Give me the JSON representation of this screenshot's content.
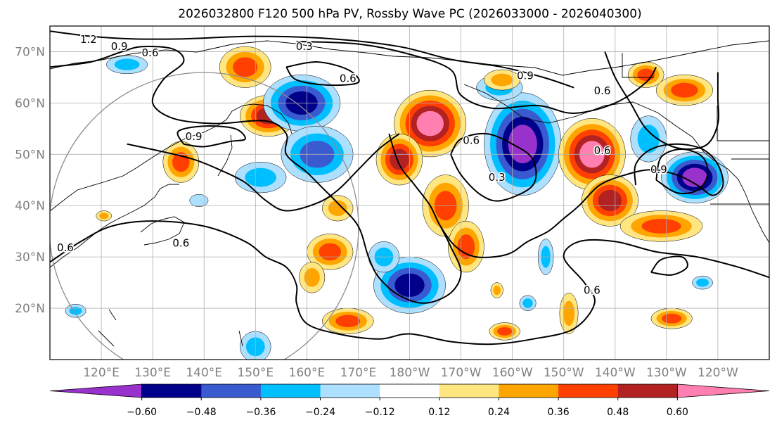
{
  "chart_data": {
    "type": "heatmap",
    "title": "2026032800 F120 500 hPa PV, Rossby Wave PC (2026033000 - 2026040300)",
    "xlabel": "",
    "ylabel": "",
    "lon_range": [
      110,
      250
    ],
    "lat_range": [
      10,
      75
    ],
    "lat_ticks": [
      {
        "value": 20,
        "label": "20°N"
      },
      {
        "value": 30,
        "label": "30°N"
      },
      {
        "value": 40,
        "label": "40°N"
      },
      {
        "value": 50,
        "label": "50°N"
      },
      {
        "value": 60,
        "label": "60°N"
      },
      {
        "value": 70,
        "label": "70°N"
      }
    ],
    "lon_ticks": [
      {
        "value": 120,
        "label": "120°E"
      },
      {
        "value": 130,
        "label": "130°E"
      },
      {
        "value": 140,
        "label": "140°E"
      },
      {
        "value": 150,
        "label": "150°E"
      },
      {
        "value": 160,
        "label": "160°E"
      },
      {
        "value": 170,
        "label": "170°E"
      },
      {
        "value": 180,
        "label": "180°W"
      },
      {
        "value": 190,
        "label": "170°W"
      },
      {
        "value": 200,
        "label": "160°W"
      },
      {
        "value": 210,
        "label": "150°W"
      },
      {
        "value": 220,
        "label": "140°W"
      },
      {
        "value": 230,
        "label": "130°W"
      },
      {
        "value": 240,
        "label": "120°W"
      }
    ],
    "grid": true,
    "colorbar": {
      "levels": [
        -0.6,
        -0.48,
        -0.36,
        -0.24,
        -0.12,
        0.12,
        0.24,
        0.36,
        0.48,
        0.6
      ],
      "tick_labels": [
        "−0.60",
        "−0.48",
        "−0.36",
        "−0.24",
        "−0.12",
        "0.12",
        "0.24",
        "0.36",
        "0.48",
        "0.60"
      ],
      "colors": [
        "#9932CC",
        "#00008B",
        "#3A5BCF",
        "#00BFFF",
        "#ADDFFF",
        "#FFFFFF",
        "#FFE680",
        "#FFA500",
        "#FF4000",
        "#B22222",
        "#FF80B0"
      ],
      "extend": "both"
    },
    "contour_levels": [
      0.3,
      0.6,
      0.9,
      1.2
    ],
    "contour_labels": [
      {
        "text": "1.2",
        "lon": 117.5,
        "lat": 72.4
      },
      {
        "text": "0.9",
        "lon": 123.5,
        "lat": 71.0
      },
      {
        "text": "0.6",
        "lon": 129.5,
        "lat": 69.8
      },
      {
        "text": "0.3",
        "lon": 159.5,
        "lat": 71.0
      },
      {
        "text": "0.6",
        "lon": 168.0,
        "lat": 64.8
      },
      {
        "text": "0.9",
        "lon": 202.5,
        "lat": 65.3
      },
      {
        "text": "0.6",
        "lon": 217.5,
        "lat": 62.4
      },
      {
        "text": "0.9",
        "lon": 138.0,
        "lat": 53.5
      },
      {
        "text": "0.6",
        "lon": 192.0,
        "lat": 52.7
      },
      {
        "text": "0.6",
        "lon": 217.5,
        "lat": 50.7
      },
      {
        "text": "0.9",
        "lon": 228.5,
        "lat": 47.0
      },
      {
        "text": "0.3",
        "lon": 197.0,
        "lat": 45.5
      },
      {
        "text": "0.6",
        "lon": 135.5,
        "lat": 32.7
      },
      {
        "text": "0.6",
        "lon": 113.0,
        "lat": 31.8
      },
      {
        "text": "0.6",
        "lon": 215.5,
        "lat": 23.5
      }
    ],
    "blobs": [
      {
        "lon": 148,
        "lat": 67,
        "rlon": 5,
        "rlat": 4,
        "v": 0.42
      },
      {
        "lon": 152.5,
        "lat": 57.5,
        "rlon": 5.5,
        "rlat": 4,
        "v": 0.52
      },
      {
        "lon": 135.5,
        "lat": 48.5,
        "rlon": 3.5,
        "rlat": 4,
        "v": 0.46
      },
      {
        "lon": 159,
        "lat": 60,
        "rlon": 7.5,
        "rlat": 5.5,
        "v": -0.48
      },
      {
        "lon": 162,
        "lat": 50,
        "rlon": 7,
        "rlat": 5.5,
        "v": -0.38
      },
      {
        "lon": 151,
        "lat": 45.5,
        "rlon": 5,
        "rlat": 3,
        "v": -0.28
      },
      {
        "lon": 184,
        "lat": 56,
        "rlon": 7,
        "rlat": 6.5,
        "v": 0.68
      },
      {
        "lon": 178,
        "lat": 49,
        "rlon": 4.5,
        "rlat": 5,
        "v": 0.58
      },
      {
        "lon": 187,
        "lat": 40,
        "rlon": 4.5,
        "rlat": 6,
        "v": 0.46
      },
      {
        "lon": 191,
        "lat": 32,
        "rlon": 3.5,
        "rlat": 5,
        "v": 0.38
      },
      {
        "lon": 202,
        "lat": 52,
        "rlon": 7.5,
        "rlat": 10,
        "v": -0.68
      },
      {
        "lon": 197.5,
        "lat": 63,
        "rlon": 4.5,
        "rlat": 2.5,
        "v": -0.28
      },
      {
        "lon": 215.5,
        "lat": 50,
        "rlon": 6.5,
        "rlat": 7,
        "v": 0.66
      },
      {
        "lon": 219,
        "lat": 41,
        "rlon": 5.5,
        "rlat": 5,
        "v": 0.56
      },
      {
        "lon": 229,
        "lat": 36,
        "rlon": 8,
        "rlat": 3,
        "v": 0.4
      },
      {
        "lon": 235.5,
        "lat": 45.5,
        "rlon": 6.5,
        "rlat": 5,
        "v": -0.66
      },
      {
        "lon": 226.5,
        "lat": 53,
        "rlon": 3.5,
        "rlat": 4.5,
        "v": -0.32
      },
      {
        "lon": 180,
        "lat": 24.5,
        "rlon": 7,
        "rlat": 5.5,
        "v": -0.54
      },
      {
        "lon": 175,
        "lat": 30,
        "rlon": 3,
        "rlat": 3,
        "v": -0.3
      },
      {
        "lon": 233.5,
        "lat": 62.5,
        "rlon": 5.5,
        "rlat": 3,
        "v": 0.46
      },
      {
        "lon": 226,
        "lat": 65.5,
        "rlon": 3.5,
        "rlat": 2.5,
        "v": 0.38
      },
      {
        "lon": 198,
        "lat": 64.5,
        "rlon": 3.5,
        "rlat": 2,
        "v": 0.26
      },
      {
        "lon": 125,
        "lat": 67.5,
        "rlon": 4,
        "rlat": 1.8,
        "v": -0.26
      },
      {
        "lon": 164.5,
        "lat": 31,
        "rlon": 4.5,
        "rlat": 3.5,
        "v": 0.36
      },
      {
        "lon": 161,
        "lat": 26,
        "rlon": 2.5,
        "rlat": 3,
        "v": 0.3
      },
      {
        "lon": 166,
        "lat": 39.5,
        "rlon": 3,
        "rlat": 2.5,
        "v": 0.3
      },
      {
        "lon": 168,
        "lat": 17.5,
        "rlon": 5,
        "rlat": 2.5,
        "v": 0.4
      },
      {
        "lon": 198.5,
        "lat": 15.5,
        "rlon": 3,
        "rlat": 1.7,
        "v": 0.38
      },
      {
        "lon": 211,
        "lat": 19,
        "rlon": 1.8,
        "rlat": 4,
        "v": 0.34
      },
      {
        "lon": 231,
        "lat": 18,
        "rlon": 4,
        "rlat": 2,
        "v": 0.38
      },
      {
        "lon": 150,
        "lat": 12.5,
        "rlon": 3,
        "rlat": 3,
        "v": -0.26
      },
      {
        "lon": 206.5,
        "lat": 30,
        "rlon": 1.5,
        "rlat": 3.5,
        "v": -0.26
      },
      {
        "lon": 139,
        "lat": 41,
        "rlon": 1.8,
        "rlat": 1.2,
        "v": -0.22
      },
      {
        "lon": 115,
        "lat": 19.5,
        "rlon": 2,
        "rlat": 1.3,
        "v": -0.26
      },
      {
        "lon": 237,
        "lat": 25,
        "rlon": 2,
        "rlat": 1.3,
        "v": -0.26
      },
      {
        "lon": 203,
        "lat": 21,
        "rlon": 1.6,
        "rlat": 1.5,
        "v": -0.26
      },
      {
        "lon": 197,
        "lat": 23.5,
        "rlon": 1.2,
        "rlat": 1.5,
        "v": 0.3
      },
      {
        "lon": 120.5,
        "lat": 38,
        "rlon": 1.5,
        "rlat": 1,
        "v": 0.3
      }
    ],
    "contours": [
      [
        [
          110,
          74
        ],
        [
          118,
          73
        ],
        [
          126,
          72.5
        ],
        [
          136,
          72.5
        ],
        [
          150,
          73
        ],
        [
          165,
          72.5
        ],
        [
          178,
          71
        ],
        [
          188,
          68.5
        ],
        [
          198,
          67
        ],
        [
          206,
          65
        ],
        [
          212,
          63
        ]
      ],
      [
        [
          110,
          67
        ],
        [
          118,
          68
        ],
        [
          124,
          70
        ],
        [
          128,
          71
        ],
        [
          134,
          70.5
        ],
        [
          136,
          68
        ],
        [
          132,
          64.5
        ],
        [
          130,
          60
        ],
        [
          134,
          57
        ],
        [
          142,
          56
        ],
        [
          152,
          56.5
        ],
        [
          156,
          54
        ],
        [
          156,
          50
        ],
        [
          160,
          46.5
        ],
        [
          163,
          43.5
        ],
        [
          166,
          40.5
        ],
        [
          170,
          36
        ],
        [
          172,
          30
        ],
        [
          174,
          26
        ],
        [
          178,
          22.5
        ],
        [
          183,
          21
        ],
        [
          188,
          23
        ],
        [
          190,
          27
        ],
        [
          188,
          32
        ],
        [
          186,
          36
        ]
      ],
      [
        [
          158,
          72
        ],
        [
          170,
          71.5
        ],
        [
          180,
          69.5
        ],
        [
          188,
          66.5
        ],
        [
          190,
          61.5
        ],
        [
          196,
          59
        ],
        [
          205,
          59.5
        ],
        [
          212,
          58
        ],
        [
          220,
          60
        ],
        [
          226,
          64
        ],
        [
          228,
          67
        ]
      ],
      [
        [
          156,
          67
        ],
        [
          162,
          68
        ],
        [
          168,
          66.5
        ],
        [
          170,
          64
        ],
        [
          164,
          63.5
        ],
        [
          158,
          64.5
        ],
        [
          156,
          67
        ]
      ],
      [
        [
          188,
          50
        ],
        [
          190,
          46
        ],
        [
          194,
          42
        ],
        [
          198,
          41
        ],
        [
          204,
          44
        ],
        [
          204,
          49
        ],
        [
          200,
          52
        ],
        [
          195,
          54
        ],
        [
          190,
          53
        ],
        [
          188,
          50
        ]
      ],
      [
        [
          176,
          54
        ],
        [
          178,
          48
        ],
        [
          181,
          44
        ],
        [
          184,
          40
        ],
        [
          186,
          36
        ],
        [
          189,
          32
        ],
        [
          193,
          30
        ],
        [
          199,
          30.5
        ],
        [
          203,
          33
        ],
        [
          207,
          35
        ],
        [
          210,
          37.5
        ],
        [
          213,
          40
        ],
        [
          217,
          44
        ],
        [
          222,
          46
        ],
        [
          227,
          47
        ],
        [
          232,
          46
        ],
        [
          236,
          44
        ],
        [
          239,
          42
        ],
        [
          241,
          44
        ],
        [
          240,
          48
        ],
        [
          237,
          51
        ],
        [
          232,
          52
        ],
        [
          227,
          51
        ],
        [
          224,
          48
        ],
        [
          224,
          44
        ]
      ],
      [
        [
          125,
          52
        ],
        [
          132,
          50.5
        ],
        [
          138,
          49
        ],
        [
          143,
          47
        ],
        [
          148,
          44.5
        ],
        [
          152,
          41
        ],
        [
          156,
          39
        ],
        [
          162,
          40.5
        ],
        [
          166,
          43
        ],
        [
          170,
          47
        ],
        [
          174,
          51
        ],
        [
          178,
          54
        ]
      ],
      [
        [
          110,
          29
        ],
        [
          116,
          33
        ],
        [
          122,
          36
        ],
        [
          130,
          37
        ],
        [
          140,
          36
        ],
        [
          148,
          33
        ],
        [
          152,
          30
        ],
        [
          156,
          28
        ],
        [
          158,
          24.5
        ],
        [
          158,
          21
        ],
        [
          160,
          17
        ],
        [
          166,
          15
        ],
        [
          174,
          14
        ],
        [
          180,
          15
        ],
        [
          188,
          13.5
        ],
        [
          196,
          13
        ],
        [
          204,
          14
        ],
        [
          212,
          16
        ],
        [
          216,
          21
        ],
        [
          214,
          25
        ],
        [
          210,
          30
        ],
        [
          213,
          33
        ],
        [
          220,
          33
        ],
        [
          228,
          31
        ],
        [
          236,
          30
        ],
        [
          244,
          28
        ],
        [
          250,
          26
        ]
      ],
      [
        [
          218,
          70
        ],
        [
          220,
          65
        ],
        [
          223,
          60
        ],
        [
          226,
          55
        ],
        [
          230,
          52
        ],
        [
          234,
          51
        ],
        [
          238,
          52
        ],
        [
          240,
          56
        ],
        [
          240,
          61
        ],
        [
          240,
          66
        ]
      ],
      [
        [
          228,
          45
        ],
        [
          229,
          49.5
        ],
        [
          233,
          51
        ],
        [
          237,
          49.5
        ],
        [
          238,
          46
        ],
        [
          236,
          43
        ],
        [
          232,
          42.5
        ],
        [
          228,
          45
        ]
      ],
      [
        [
          136,
          52
        ],
        [
          140,
          51.5
        ],
        [
          145,
          52.5
        ],
        [
          148,
          53
        ],
        [
          146,
          55
        ],
        [
          140,
          55.5
        ],
        [
          135,
          54.5
        ],
        [
          136,
          52
        ]
      ],
      [
        [
          227,
          27
        ],
        [
          229,
          29.5
        ],
        [
          233,
          30
        ],
        [
          234,
          28
        ],
        [
          231,
          26.5
        ],
        [
          227,
          27
        ]
      ]
    ]
  }
}
